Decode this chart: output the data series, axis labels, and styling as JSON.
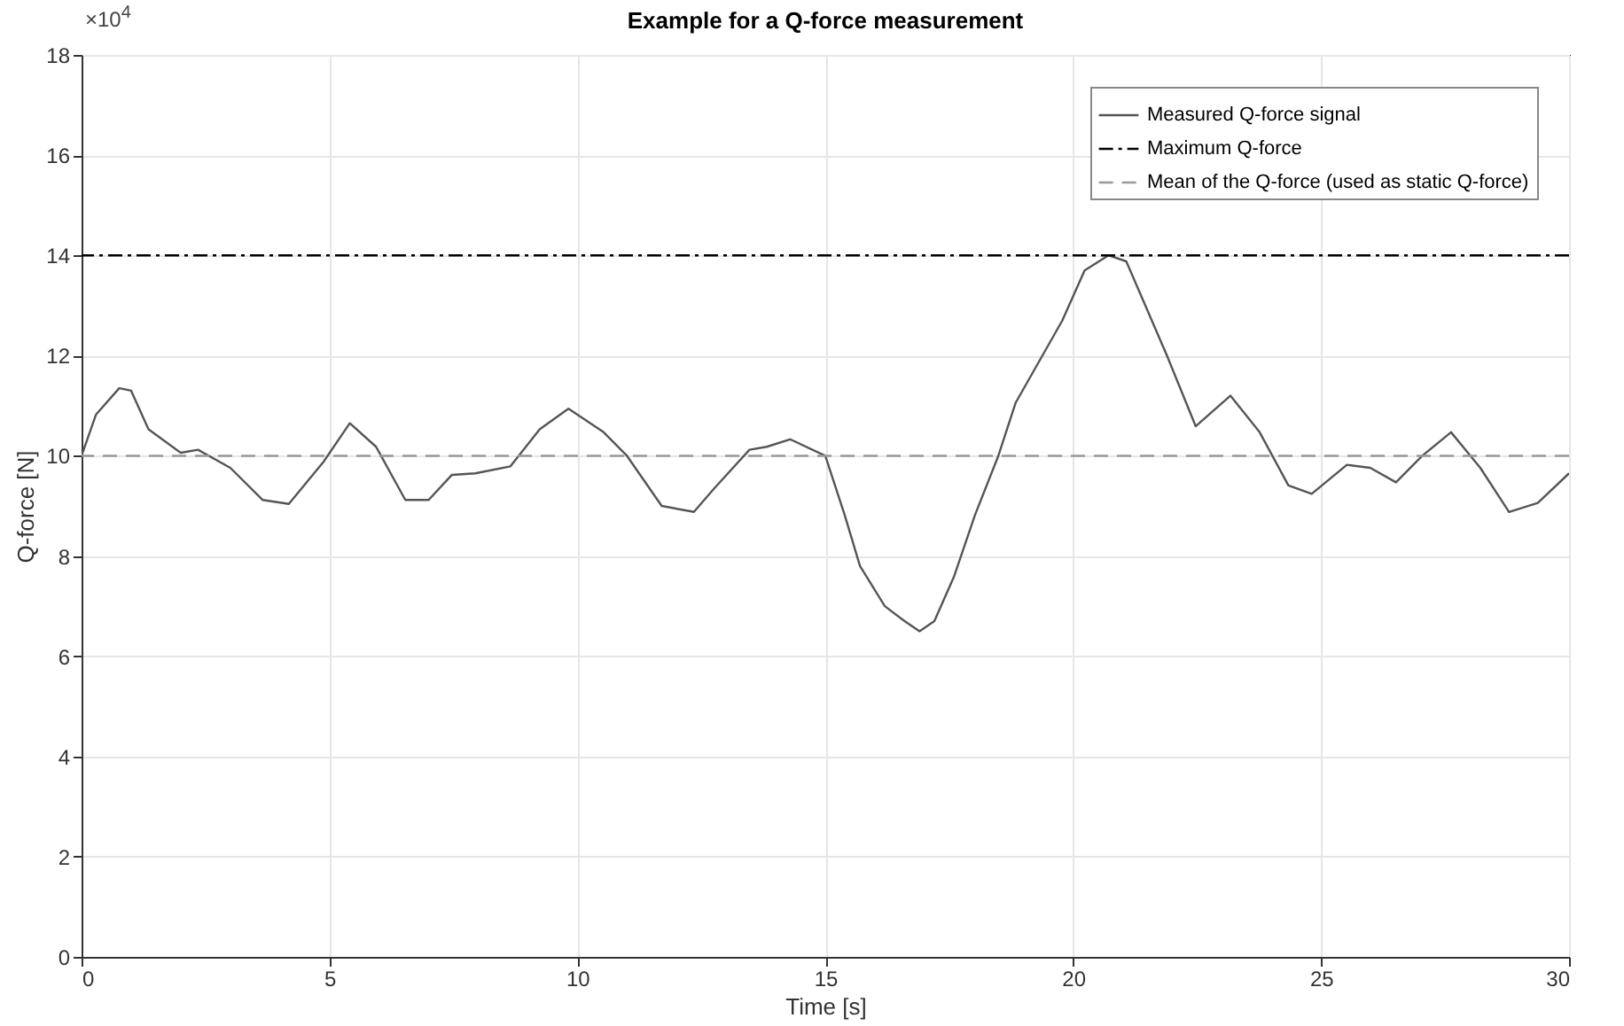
{
  "chart_data": {
    "type": "line",
    "title": "Example for a Q-force measurement",
    "xlabel": "Time [s]",
    "ylabel": "Q-force [N]",
    "annotations": [
      "×10$^{4}$"
    ],
    "x": [
      0,
      0.29,
      0.76,
      1.0,
      1.35,
      2.0,
      2.35,
      3.0,
      3.65,
      4.18,
      4.88,
      5.41,
      5.94,
      6.53,
      7.0,
      7.47,
      7.94,
      8.65,
      9.24,
      9.82,
      10.53,
      11.0,
      11.7,
      12.35,
      12.76,
      13.47,
      13.82,
      14.29,
      15.0,
      15.39,
      15.7,
      16.2,
      16.6,
      16.9,
      17.2,
      17.6,
      18.02,
      18.49,
      18.84,
      19.78,
      20.23,
      20.71,
      21.07,
      21.89,
      22.47,
      23.17,
      23.76,
      24.34,
      24.81,
      25.52,
      25.99,
      26.51,
      27.04,
      27.62,
      28.21,
      28.79,
      29.37,
      30
    ],
    "series": [
      {
        "name": "Measured Q-force signal",
        "color": "#555555",
        "values": [
          10.0,
          10.82,
          11.35,
          11.3,
          10.53,
          10.06,
          10.12,
          9.76,
          9.12,
          9.04,
          9.88,
          10.65,
          10.18,
          9.12,
          9.12,
          9.62,
          9.65,
          9.79,
          10.53,
          10.94,
          10.47,
          10.0,
          9.0,
          8.88,
          9.35,
          10.12,
          10.18,
          10.33,
          10.0,
          8.82,
          7.8,
          7.0,
          6.7,
          6.5,
          6.7,
          7.6,
          8.82,
          10.0,
          11.06,
          12.7,
          13.7,
          14.0,
          13.88,
          12.0,
          10.59,
          11.2,
          10.47,
          9.41,
          9.24,
          9.82,
          9.76,
          9.47,
          10.0,
          10.47,
          9.76,
          8.88,
          9.06,
          9.65
        ]
      }
    ],
    "ref_lines": [
      {
        "axis": "y",
        "value": 14,
        "label": "Maximum Q-force",
        "color": "#000000",
        "line_style": "dashdot"
      },
      {
        "axis": "y",
        "value": 10,
        "label": "Mean of the Q-force (used as static Q-force)",
        "color": "#999999",
        "line_style": "dashed"
      }
    ],
    "xlim": [
      0,
      30
    ],
    "xticks": [
      0,
      5,
      10,
      15,
      20,
      25,
      30
    ],
    "ylim": [
      0,
      18
    ],
    "yticks": [
      0,
      2,
      4,
      6,
      8,
      10,
      12,
      14,
      16,
      18
    ],
    "grid": true,
    "legend": "top right",
    "line_style": "solid"
  }
}
